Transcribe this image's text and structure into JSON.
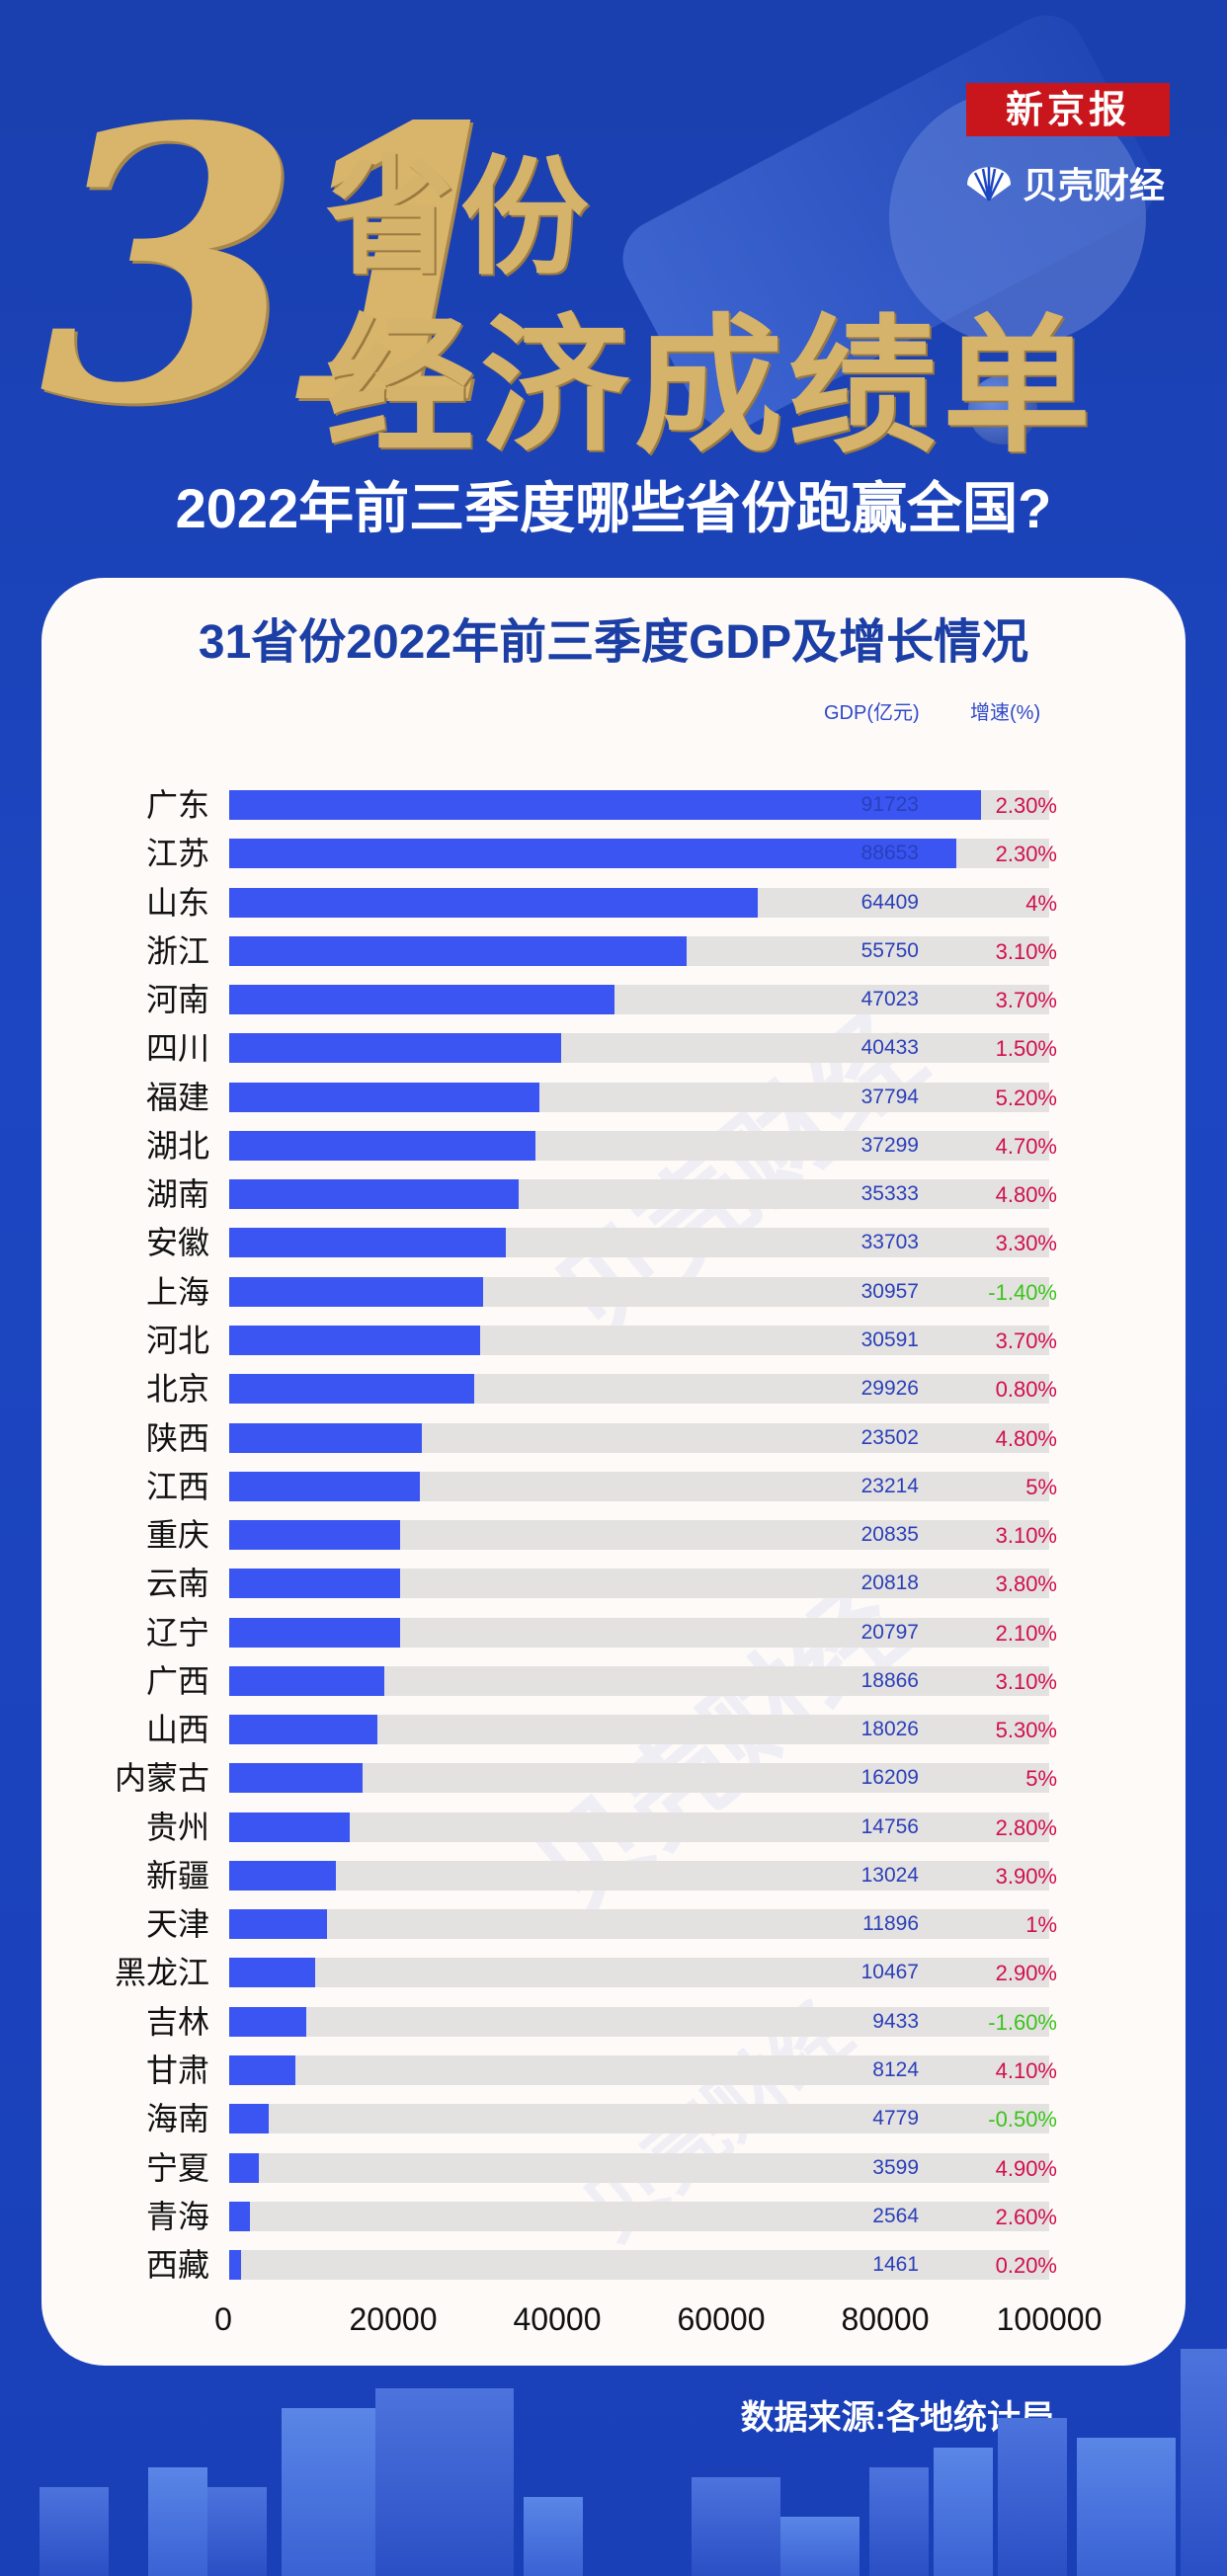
{
  "header": {
    "big_number": "31",
    "title_line1": "省份",
    "title_line2": "经济成绩单",
    "badge": "新京报",
    "brand": "贝壳财经",
    "subtitle": "2022年前三季度哪些省份跑赢全国?"
  },
  "watermark": "贝壳财经",
  "footer": {
    "source": "数据来源:各地统计局"
  },
  "colors": {
    "bar": "#3a55f2",
    "track": "#e4e1e1",
    "positive_rate": "#d0104a",
    "negative_rate": "#3ac41a",
    "title": "#1c3fa6"
  },
  "chart_data": {
    "type": "bar",
    "orientation": "horizontal",
    "title": "31省份2022年前三季度GDP及增长情况",
    "value_header": "GDP(亿元)",
    "rate_header": "增速(%)",
    "xlim": [
      0,
      100000
    ],
    "xticks": [
      "0",
      "20000",
      "40000",
      "60000",
      "80000",
      "100000"
    ],
    "grid": false,
    "categories": [
      "广东",
      "江苏",
      "山东",
      "浙江",
      "河南",
      "四川",
      "福建",
      "湖北",
      "湖南",
      "安徽",
      "上海",
      "河北",
      "北京",
      "陕西",
      "江西",
      "重庆",
      "云南",
      "辽宁",
      "广西",
      "山西",
      "内蒙古",
      "贵州",
      "新疆",
      "天津",
      "黑龙江",
      "吉林",
      "甘肃",
      "海南",
      "宁夏",
      "青海",
      "西藏"
    ],
    "values": [
      91723,
      88653,
      64409,
      55750,
      47023,
      40433,
      37794,
      37299,
      35333,
      33703,
      30957,
      30591,
      29926,
      23502,
      23214,
      20835,
      20818,
      20797,
      18866,
      18026,
      16209,
      14756,
      13024,
      11896,
      10467,
      9433,
      8124,
      4779,
      3599,
      2564,
      1461
    ],
    "growth": [
      "2.30%",
      "2.30%",
      "4%",
      "3.10%",
      "3.70%",
      "1.50%",
      "5.20%",
      "4.70%",
      "4.80%",
      "3.30%",
      "-1.40%",
      "3.70%",
      "0.80%",
      "4.80%",
      "5%",
      "3.10%",
      "3.80%",
      "2.10%",
      "3.10%",
      "5.30%",
      "5%",
      "2.80%",
      "3.90%",
      "1%",
      "2.90%",
      "-1.60%",
      "4.10%",
      "-0.50%",
      "4.90%",
      "2.60%",
      "0.20%"
    ]
  }
}
